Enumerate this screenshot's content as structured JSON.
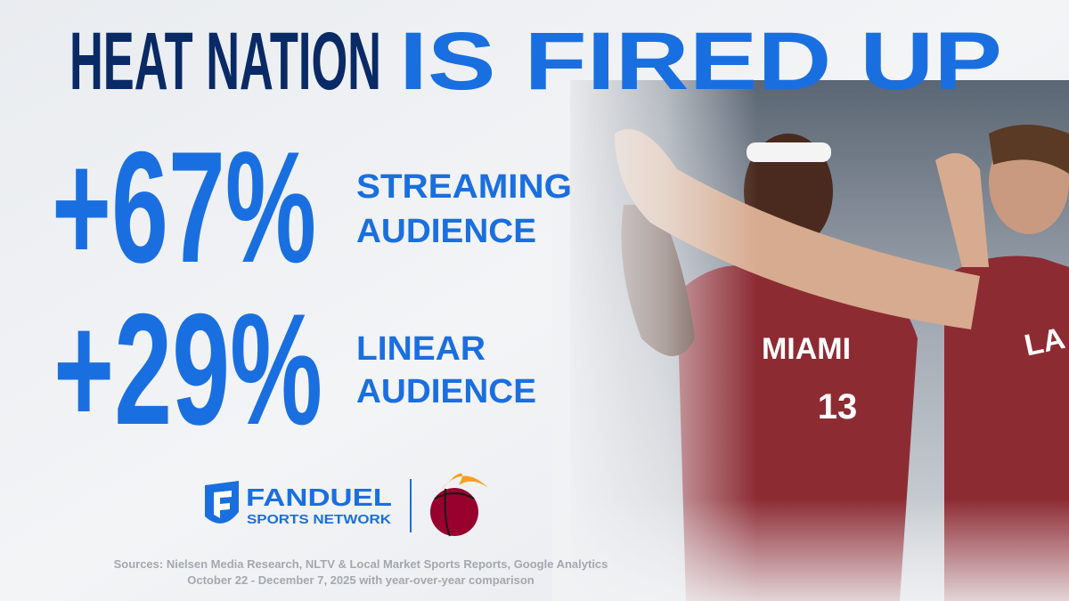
{
  "header": {
    "title_part1": "HEAT NATION",
    "title_part2": "IS FIRED UP"
  },
  "stats": [
    {
      "value": "+67%",
      "label_lines": [
        "STREAMING",
        "AUDIENCE"
      ]
    },
    {
      "value": "+29%",
      "label_lines": [
        "LINEAR",
        "AUDIENCE"
      ]
    }
  ],
  "logos": {
    "brand": "FANDUEL",
    "subbrand": "SPORTS NETWORK"
  },
  "photo": {
    "jersey_texts": [
      "MIAMI",
      "13",
      "LA"
    ]
  },
  "footer": {
    "sources": [
      "Sources: Nielsen Media Research, NLTV & Local Market Sports Reports, Google Analytics",
      "October 22 - December 7, 2025 with year-over-year comparison"
    ]
  }
}
